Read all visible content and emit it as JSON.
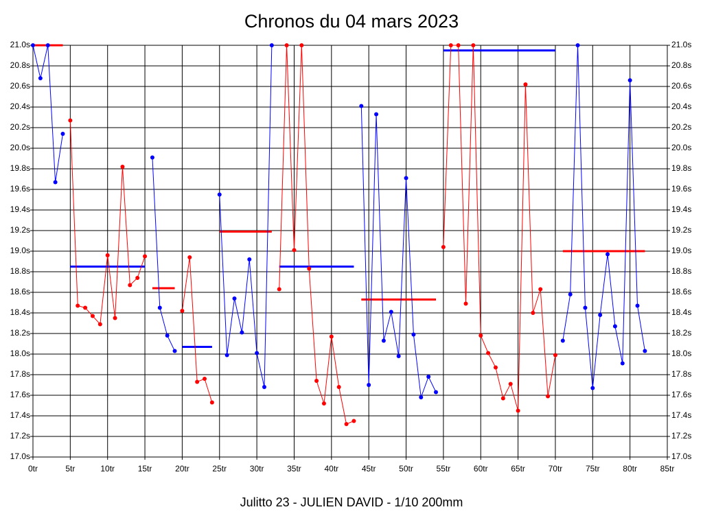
{
  "chart_data": {
    "type": "line",
    "title": "Chronos du 04 mars 2023",
    "x_label": "Julitto 23 - JULIEN DAVID - 1/10 200mm",
    "xlim": [
      0,
      85
    ],
    "xticks": [
      {
        "value": 0,
        "label": "0tr"
      },
      {
        "value": 5,
        "label": "5tr"
      },
      {
        "value": 10,
        "label": "10tr"
      },
      {
        "value": 15,
        "label": "15tr"
      },
      {
        "value": 20,
        "label": "20tr"
      },
      {
        "value": 25,
        "label": "25tr"
      },
      {
        "value": 30,
        "label": "30tr"
      },
      {
        "value": 35,
        "label": "35tr"
      },
      {
        "value": 40,
        "label": "40tr"
      },
      {
        "value": 45,
        "label": "45tr"
      },
      {
        "value": 50,
        "label": "50tr"
      },
      {
        "value": 55,
        "label": "55tr"
      },
      {
        "value": 60,
        "label": "60tr"
      },
      {
        "value": 65,
        "label": "65tr"
      },
      {
        "value": 70,
        "label": "70tr"
      },
      {
        "value": 75,
        "label": "75tr"
      },
      {
        "value": 80,
        "label": "80tr"
      },
      {
        "value": 85,
        "label": "85tr"
      }
    ],
    "ylim": [
      17.0,
      21.0
    ],
    "yticks": [
      {
        "value": 17.0,
        "label": "17.0s"
      },
      {
        "value": 17.2,
        "label": "17.2s"
      },
      {
        "value": 17.4,
        "label": "17.4s"
      },
      {
        "value": 17.6,
        "label": "17.6s"
      },
      {
        "value": 17.8,
        "label": "17.8s"
      },
      {
        "value": 18.0,
        "label": "18.0s"
      },
      {
        "value": 18.2,
        "label": "18.2s"
      },
      {
        "value": 18.4,
        "label": "18.4s"
      },
      {
        "value": 18.6,
        "label": "18.6s"
      },
      {
        "value": 18.8,
        "label": "18.8s"
      },
      {
        "value": 19.0,
        "label": "19.0s"
      },
      {
        "value": 19.2,
        "label": "19.2s"
      },
      {
        "value": 19.4,
        "label": "19.4s"
      },
      {
        "value": 19.6,
        "label": "19.6s"
      },
      {
        "value": 19.8,
        "label": "19.8s"
      },
      {
        "value": 20.0,
        "label": "20.0s"
      },
      {
        "value": 20.2,
        "label": "20.2s"
      },
      {
        "value": 20.4,
        "label": "20.4s"
      },
      {
        "value": 20.6,
        "label": "20.6s"
      },
      {
        "value": 20.8,
        "label": "20.8s"
      },
      {
        "value": 21.0,
        "label": "21.0s"
      }
    ],
    "grid": true,
    "series": [
      {
        "color": "#0000ff",
        "x": [
          0,
          1,
          2,
          3,
          4
        ],
        "values": [
          21.0,
          20.68,
          21.0,
          19.67,
          20.14
        ]
      },
      {
        "color": "#ff0000",
        "x": [
          5,
          6,
          7,
          8,
          9,
          10,
          11,
          12,
          13,
          14,
          15
        ],
        "values": [
          20.27,
          18.47,
          18.45,
          18.37,
          18.29,
          18.96,
          18.35,
          19.82,
          18.67,
          18.74,
          18.95
        ]
      },
      {
        "color": "#0000ff",
        "x": [
          16,
          17,
          18,
          19
        ],
        "values": [
          19.91,
          18.45,
          18.18,
          18.03
        ]
      },
      {
        "color": "#ff0000",
        "x": [
          20,
          21,
          22,
          23,
          24
        ],
        "values": [
          18.42,
          18.94,
          17.73,
          17.76,
          17.53
        ]
      },
      {
        "color": "#0000ff",
        "x": [
          25,
          26,
          27,
          28,
          29,
          30,
          31,
          32
        ],
        "values": [
          19.55,
          17.99,
          18.54,
          18.21,
          18.92,
          18.01,
          17.68,
          21.0
        ]
      },
      {
        "color": "#ff0000",
        "x": [
          33,
          34,
          35,
          36,
          37,
          38,
          39,
          40,
          41,
          42,
          43
        ],
        "values": [
          18.63,
          21.0,
          19.01,
          21.0,
          18.83,
          17.74,
          17.52,
          18.17,
          17.68,
          17.32,
          17.35
        ]
      },
      {
        "color": "#0000ff",
        "x": [
          44,
          45,
          46,
          47,
          48,
          49,
          50,
          51,
          52,
          53,
          54
        ],
        "values": [
          20.41,
          17.7,
          20.33,
          18.13,
          18.41,
          17.98,
          19.71,
          18.19,
          17.58,
          17.78,
          17.63
        ]
      },
      {
        "color": "#ff0000",
        "x": [
          55,
          56,
          57,
          58,
          59,
          60,
          61,
          62,
          63,
          64,
          65,
          66,
          67,
          68,
          69,
          70
        ],
        "values": [
          19.04,
          21.0,
          21.0,
          18.49,
          21.0,
          18.18,
          18.01,
          17.87,
          17.57,
          17.71,
          17.45,
          20.62,
          18.4,
          18.63,
          17.59,
          17.99
        ]
      },
      {
        "color": "#0000ff",
        "x": [
          71,
          72,
          73,
          74,
          75,
          76,
          77,
          78,
          79,
          80,
          81,
          82
        ],
        "values": [
          18.13,
          18.58,
          21.0,
          18.45,
          17.67,
          18.38,
          18.97,
          18.27,
          17.91,
          20.66,
          18.47,
          18.03
        ]
      }
    ],
    "averages": [
      {
        "color": "#ff0000",
        "x": [
          0,
          4
        ],
        "value": 21.0
      },
      {
        "color": "#0000ff",
        "x": [
          5,
          15
        ],
        "value": 18.85
      },
      {
        "color": "#ff0000",
        "x": [
          16,
          19
        ],
        "value": 18.64
      },
      {
        "color": "#0000ff",
        "x": [
          20,
          24
        ],
        "value": 18.07
      },
      {
        "color": "#ff0000",
        "x": [
          25,
          32
        ],
        "value": 19.19
      },
      {
        "color": "#0000ff",
        "x": [
          33,
          43
        ],
        "value": 18.85
      },
      {
        "color": "#ff0000",
        "x": [
          44,
          54
        ],
        "value": 18.53
      },
      {
        "color": "#0000ff",
        "x": [
          55,
          70
        ],
        "value": 20.95
      },
      {
        "color": "#ff0000",
        "x": [
          71,
          82
        ],
        "value": 19.0
      }
    ]
  }
}
